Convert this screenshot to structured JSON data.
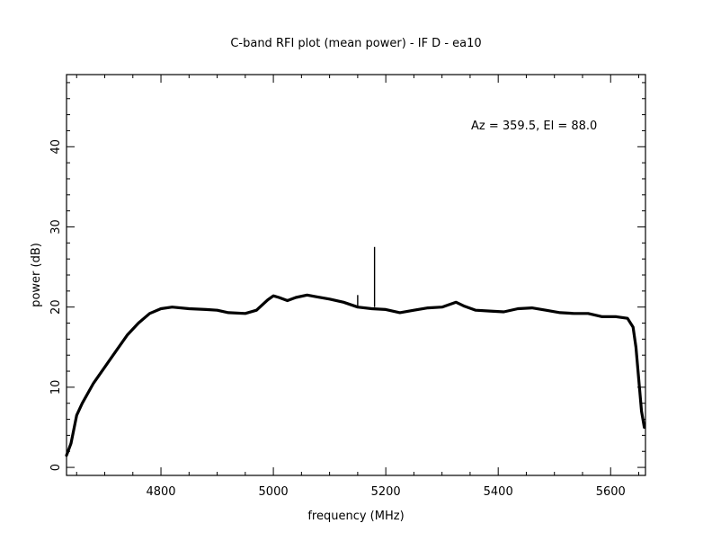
{
  "chart_data": {
    "type": "line",
    "title": "C-band RFI plot (mean power) - IF D - ea10",
    "xlabel": "frequency (MHz)",
    "ylabel": "power (dB)",
    "annotation": "Az = 359.5, El = 88.0",
    "xlim": [
      4632,
      5662
    ],
    "ylim": [
      -1,
      49
    ],
    "xticks": [
      4800,
      5000,
      5200,
      5400,
      5600
    ],
    "yticks": [
      0,
      10,
      20,
      30,
      40
    ],
    "grid": false,
    "series": [
      {
        "color": "#000000",
        "x": [
          4632,
          4640,
          4650,
          4660,
          4680,
          4700,
          4720,
          4740,
          4760,
          4780,
          4800,
          4820,
          4850,
          4880,
          4900,
          4920,
          4950,
          4970,
          4990,
          5000,
          5010,
          5025,
          5040,
          5060,
          5075,
          5100,
          5125,
          5150,
          5175,
          5200,
          5225,
          5250,
          5275,
          5300,
          5325,
          5340,
          5360,
          5385,
          5410,
          5435,
          5460,
          5485,
          5510,
          5535,
          5560,
          5585,
          5610,
          5630,
          5640,
          5645,
          5650,
          5655,
          5660
        ],
        "y": [
          1.5,
          3,
          6.5,
          8,
          10.5,
          12.5,
          14.5,
          16.5,
          18,
          19.2,
          19.8,
          20,
          19.8,
          19.7,
          19.6,
          19.3,
          19.2,
          19.6,
          20.9,
          21.4,
          21.2,
          20.8,
          21.2,
          21.5,
          21.3,
          21,
          20.6,
          20,
          19.8,
          19.7,
          19.3,
          19.6,
          19.9,
          20,
          20.6,
          20.1,
          19.6,
          19.5,
          19.4,
          19.8,
          19.9,
          19.6,
          19.3,
          19.2,
          19.2,
          18.8,
          18.8,
          18.6,
          17.5,
          15,
          11,
          7,
          5
        ]
      }
    ],
    "spikes": [
      {
        "x": 5150,
        "y": 21.5
      },
      {
        "x": 5180,
        "y": 27.5
      }
    ]
  }
}
